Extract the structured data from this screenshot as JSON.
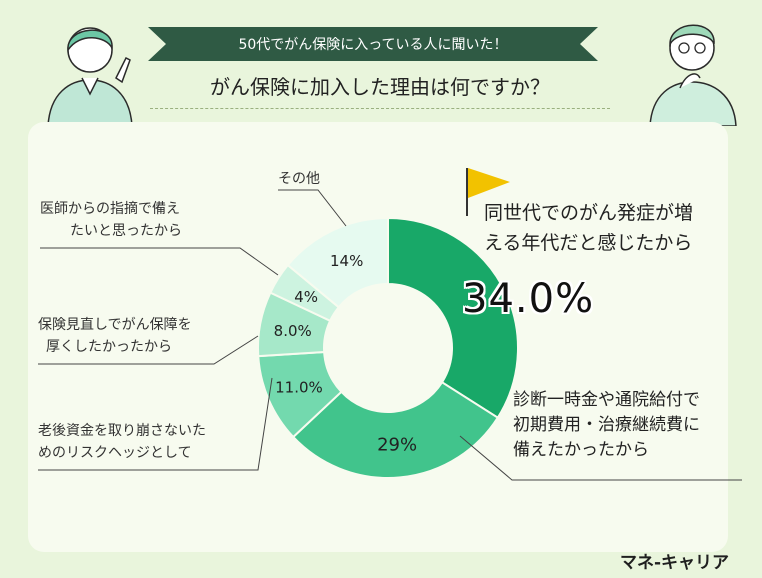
{
  "header": {
    "banner": "50代でがん保険に入っている人に聞いた！",
    "question": "がん保険に加入した理由は何ですか？"
  },
  "brand": "マネ-キャリア",
  "colors": {
    "background": "#e9f5dc",
    "banner": "#2f5a44",
    "accent_flag": "#f2c200"
  },
  "chart_data": {
    "type": "pie",
    "variant": "donut",
    "start": "top",
    "direction": "clockwise",
    "slices": [
      {
        "label": "同世代でのがん発症が増える年代だと感じたから",
        "value": 34.0,
        "value_label": "34.0%",
        "color": "#18a868"
      },
      {
        "label": "診断一時金や通院給付で初期費用・治療継続費に備えたかったから",
        "value": 29,
        "value_label": "29%",
        "color": "#41c48c"
      },
      {
        "label": "老後資金を取り崩さないためのリスクヘッジとして",
        "value": 11.0,
        "value_label": "11.0%",
        "color": "#73d9ae"
      },
      {
        "label": "保険見直しでがん保障を厚くしたかったから",
        "value": 8.0,
        "value_label": "8.0%",
        "color": "#a6e8c9"
      },
      {
        "label": "医師からの指摘で備えたいと思ったから",
        "value": 4,
        "value_label": "4%",
        "color": "#cdf3e0"
      },
      {
        "label": "その他",
        "value": 14,
        "value_label": "14%",
        "color": "#e6faf0"
      }
    ]
  },
  "labels": {
    "l34": [
      "同世代でのがん発症が増",
      "える年代だと感じたから"
    ],
    "l29": [
      "診断一時金や通院給付で",
      "初期費用・治療継続費に",
      "備えたかったから"
    ],
    "l11": [
      "老後資金を取り崩さないた",
      "めのリスクヘッジとして"
    ],
    "l8": [
      "保険見直しでがん保障を",
      "厚くしたかったから"
    ],
    "l4": [
      "医師からの指摘で備え",
      "たいと思ったから"
    ],
    "l14": [
      "その他"
    ]
  }
}
